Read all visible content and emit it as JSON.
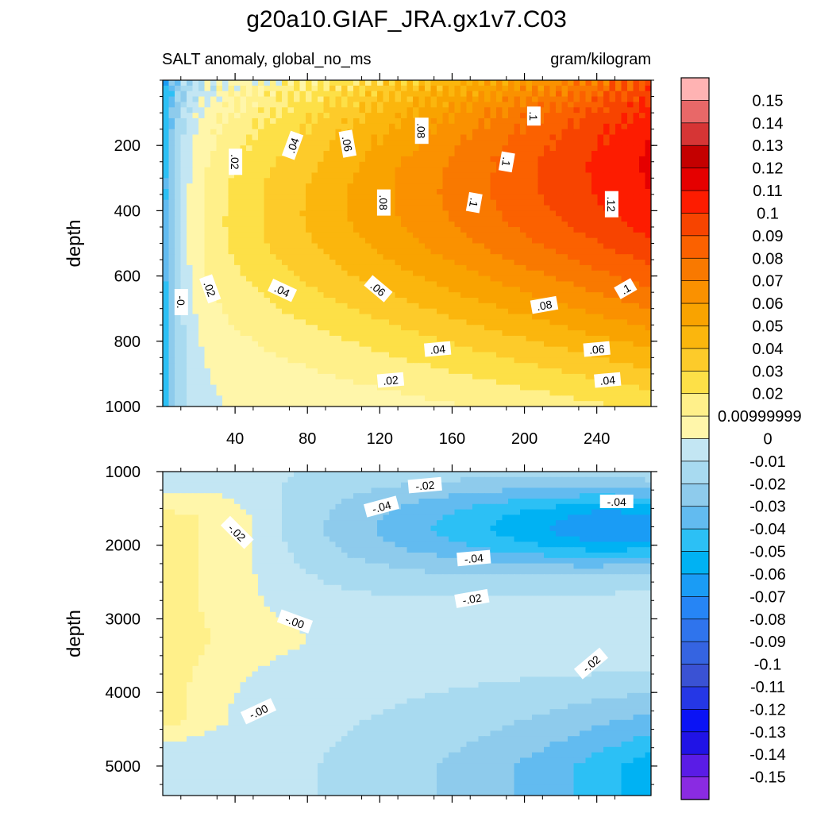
{
  "chart_data": {
    "type": "heatmap",
    "title": "g20a10.GIAF_JRA.gx1v7.C03",
    "subtitle_left": "SALT anomaly, global_no_ms",
    "subtitle_right": "gram/kilogram",
    "xlabel": "",
    "xlim": [
      0,
      270
    ],
    "x_ticks": [
      "40",
      "80",
      "120",
      "160",
      "200",
      "240"
    ],
    "panels": [
      {
        "name": "upper",
        "ylabel": "depth",
        "ylim": [
          0,
          1000
        ],
        "y_ticks": [
          "200",
          "400",
          "600",
          "800",
          "1000"
        ],
        "contour_labels": [
          {
            "text": "-0.",
            "x": 10,
            "y": 680,
            "rot": 90
          },
          {
            "text": ".02",
            "x": 40,
            "y": 250,
            "rot": 90
          },
          {
            "text": ".04",
            "x": 72,
            "y": 200,
            "rot": -70
          },
          {
            "text": ".06",
            "x": 102,
            "y": 195,
            "rot": 80
          },
          {
            "text": ".08",
            "x": 143,
            "y": 155,
            "rot": 90
          },
          {
            "text": ".1",
            "x": 205,
            "y": 110,
            "rot": 90
          },
          {
            "text": ".1",
            "x": 190,
            "y": 250,
            "rot": 100
          },
          {
            "text": ".08",
            "x": 122,
            "y": 375,
            "rot": 90
          },
          {
            "text": ".1",
            "x": 172,
            "y": 375,
            "rot": 100
          },
          {
            "text": ".12",
            "x": 248,
            "y": 380,
            "rot": 90
          },
          {
            "text": ".02",
            "x": 26,
            "y": 640,
            "rot": 70
          },
          {
            "text": ".04",
            "x": 66,
            "y": 645,
            "rot": 25
          },
          {
            "text": ".06",
            "x": 119,
            "y": 640,
            "rot": 40
          },
          {
            "text": ".08",
            "x": 211,
            "y": 690,
            "rot": -10
          },
          {
            "text": ".1",
            "x": 256,
            "y": 640,
            "rot": -30
          },
          {
            "text": ".04",
            "x": 152,
            "y": 825,
            "rot": -5
          },
          {
            "text": ".06",
            "x": 240,
            "y": 825,
            "rot": -5
          },
          {
            "text": ".02",
            "x": 126,
            "y": 920,
            "rot": -5
          },
          {
            "text": ".04",
            "x": 246,
            "y": 920,
            "rot": -5
          }
        ]
      },
      {
        "name": "lower",
        "ylabel": "depth",
        "ylim": [
          1000,
          5400
        ],
        "y_ticks": [
          "1000",
          "2000",
          "3000",
          "4000",
          "5000"
        ],
        "contour_labels": [
          {
            "text": "-.02",
            "x": 145,
            "y": 1190,
            "rot": -5
          },
          {
            "text": "-.04",
            "x": 121,
            "y": 1480,
            "rot": -15
          },
          {
            "text": "-.04",
            "x": 251,
            "y": 1410,
            "rot": 0
          },
          {
            "text": "-.02",
            "x": 41,
            "y": 1830,
            "rot": 45
          },
          {
            "text": "-.04",
            "x": 172,
            "y": 2180,
            "rot": -5
          },
          {
            "text": "-.02",
            "x": 171,
            "y": 2730,
            "rot": -10
          },
          {
            "text": "-.00",
            "x": 73,
            "y": 3040,
            "rot": 20
          },
          {
            "text": "-.00",
            "x": 53,
            "y": 4260,
            "rot": -25
          },
          {
            "text": "-.02",
            "x": 237,
            "y": 3610,
            "rot": -40
          }
        ]
      }
    ],
    "colorbar": {
      "labels": [
        "0.15",
        "0.14",
        "0.13",
        "0.12",
        "0.11",
        "0.1",
        "0.09",
        "0.08",
        "0.07",
        "0.06",
        "0.05",
        "0.04",
        "0.03",
        "0.02",
        "0.00999999",
        "0",
        "-0.01",
        "-0.02",
        "-0.03",
        "-0.04",
        "-0.05",
        "-0.06",
        "-0.07",
        "-0.08",
        "-0.09",
        "-0.1",
        "-0.11",
        "-0.12",
        "-0.13",
        "-0.14",
        "-0.15"
      ],
      "colors": [
        "#ffb3b3",
        "#e86868",
        "#d63535",
        "#c40000",
        "#e50000",
        "#fd1c00",
        "#f74400",
        "#fb6100",
        "#f97900",
        "#fa9100",
        "#f9a300",
        "#fbb60d",
        "#fdcb2a",
        "#fde047",
        "#fff08a",
        "#fff6aa",
        "#c3e6f3",
        "#a8daf0",
        "#8ecbec",
        "#62bbf0",
        "#2cc0f5",
        "#00b2f3",
        "#1a9cf5",
        "#2685f5",
        "#2f74ed",
        "#3564e1",
        "#3a52d4",
        "#2537e6",
        "#0a13f5",
        "#2013e6",
        "#5a1ce6",
        "#8a2be2"
      ]
    },
    "levels": [
      -0.15,
      -0.14,
      -0.13,
      -0.12,
      -0.11,
      -0.1,
      -0.09,
      -0.08,
      -0.07,
      -0.06,
      -0.05,
      -0.04,
      -0.03,
      -0.02,
      -0.01,
      0,
      0.00999999,
      0.02,
      0.03,
      0.04,
      0.05,
      0.06,
      0.07,
      0.08,
      0.09,
      0.1,
      0.11,
      0.12,
      0.13,
      0.14,
      0.15
    ]
  }
}
